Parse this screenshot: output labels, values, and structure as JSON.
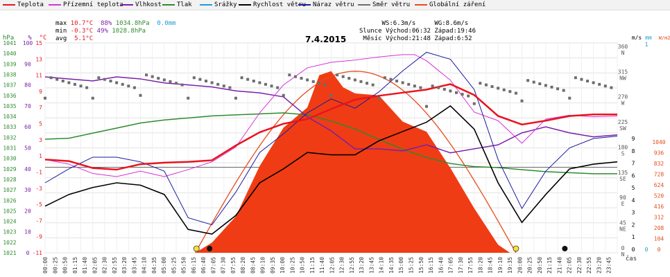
{
  "legend": [
    {
      "label": "Teplota",
      "color": "#e8141e"
    },
    {
      "label": "Přízemní teplota",
      "color": "#d930d9"
    },
    {
      "label": "Vlhkost",
      "color": "#7a1fa8"
    },
    {
      "label": "Tlak",
      "color": "#2d8a2d"
    },
    {
      "label": "Srážky",
      "color": "#1a9cd6"
    },
    {
      "label": "Rychlost větru",
      "color": "#000000"
    },
    {
      "label": "Náraz větru",
      "color": "#1a1a9c"
    },
    {
      "label": "Směr větru",
      "color": "#6d6d6d"
    },
    {
      "label": "Globální záření",
      "color": "#e84a1a"
    }
  ],
  "stats": {
    "max_label": "max",
    "max_temp": "10.7°C",
    "max_hum": "88%",
    "max_press": "1034.8hPa",
    "max_rain": "0.0mm",
    "min_label": "min",
    "min_temp": "-0.3°C",
    "min_hum": "49%",
    "min_press": "1028.8hPa",
    "avg_label": "avg",
    "avg_temp": "5.1°C"
  },
  "sun": {
    "ws": "WS:6.3m/s",
    "wg": "WG:8.6m/s",
    "sun_label": "Slunce",
    "sunrise": "Východ:06:32",
    "sunset": "Západ:19:46",
    "moon_label": "Měsíc",
    "moonrise": "Východ:21:48",
    "moonset": "Západ:6:52"
  },
  "title": "7.4.2015",
  "xlabel": "čas",
  "axes": {
    "hpa_unit": "hPa",
    "pct_unit": "%",
    "c_unit": "°C",
    "ms_unit": "m/s",
    "mm_unit": "mm",
    "wm2_unit": "W/m2",
    "hpa_ticks": [
      "1041",
      "1040",
      "1039",
      "1038",
      "1037",
      "1036",
      "1035",
      "1034",
      "1033",
      "1032",
      "1031",
      "1030",
      "1029",
      "1028",
      "1027",
      "1026",
      "1025",
      "1024",
      "1023",
      "1022",
      "1021"
    ],
    "pct_ticks": [
      "100",
      "90",
      "80",
      "70",
      "60",
      "50",
      "40",
      "30",
      "20",
      "10",
      "0"
    ],
    "c_ticks": [
      "15",
      "13",
      "11",
      "9",
      "7",
      "5",
      "3",
      "1",
      "-1",
      "-3",
      "-5",
      "-7",
      "-9",
      "-11"
    ],
    "dir_ticks": [
      {
        "v": "360",
        "d": "N"
      },
      {
        "v": "315",
        "d": "NW"
      },
      {
        "v": "270",
        "d": "W"
      },
      {
        "v": "225",
        "d": "SW"
      },
      {
        "v": "180",
        "d": "S"
      },
      {
        "v": "135",
        "d": "SE"
      },
      {
        "v": "90",
        "d": "E"
      },
      {
        "v": "45",
        "d": "NE"
      },
      {
        "v": "0",
        "d": "N"
      }
    ],
    "ms_ticks": [
      "9",
      "8",
      "7",
      "6",
      "5",
      "4",
      "3",
      "2",
      "1",
      "0"
    ],
    "mm_ticks": [
      "1",
      "0"
    ],
    "wm2_ticks": [
      "1040",
      "936",
      "832",
      "728",
      "624",
      "520",
      "416",
      "312",
      "208",
      "104",
      "0"
    ]
  },
  "chart_data": {
    "type": "line",
    "title": "7.4.2015",
    "x_ticks": [
      "00:00",
      "00:25",
      "00:50",
      "01:15",
      "01:40",
      "02:05",
      "02:30",
      "02:55",
      "03:20",
      "03:45",
      "04:10",
      "04:35",
      "05:00",
      "05:25",
      "05:50",
      "06:15",
      "06:40",
      "07:05",
      "07:30",
      "07:55",
      "08:20",
      "08:45",
      "09:10",
      "09:35",
      "10:00",
      "10:25",
      "10:50",
      "11:15",
      "11:40",
      "12:05",
      "12:30",
      "12:55",
      "13:20",
      "13:45",
      "14:10",
      "14:35",
      "15:00",
      "15:25",
      "15:50",
      "16:15",
      "16:40",
      "17:05",
      "17:30",
      "17:55",
      "18:20",
      "18:45",
      "19:10",
      "19:35",
      "20:00",
      "20:25",
      "20:50",
      "21:15",
      "21:40",
      "22:05",
      "22:30",
      "22:55",
      "23:20",
      "23:45"
    ],
    "series": [
      {
        "name": "Teplota",
        "unit": "°C",
        "x_hours": [
          0,
          1,
          2,
          3,
          4,
          5,
          6,
          7,
          8,
          9,
          10,
          11,
          12,
          13,
          14,
          15,
          16,
          17,
          18,
          19,
          20,
          21,
          22,
          23,
          24
        ],
        "values": [
          1,
          0.8,
          -0.1,
          -0.3,
          0.4,
          0.6,
          0.7,
          0.9,
          2.8,
          4.5,
          5.6,
          6.2,
          7.5,
          8.7,
          9.2,
          9.6,
          10.0,
          10.7,
          9.3,
          6.6,
          5.5,
          6.0,
          6.6,
          6.8,
          6.8
        ]
      },
      {
        "name": "Přízemní teplota",
        "unit": "°C",
        "x_hours": [
          0,
          1,
          2,
          3,
          4,
          5,
          6,
          7,
          8,
          9,
          10,
          11,
          12,
          13,
          14,
          15,
          15.5,
          16,
          17,
          18,
          19,
          20,
          21,
          22,
          23,
          24
        ],
        "values": [
          1,
          0.4,
          -0.8,
          -1.2,
          -0.5,
          -1.2,
          -0.3,
          0.7,
          2.6,
          7,
          10.6,
          12.8,
          13.5,
          13.8,
          14.2,
          14.5,
          14.5,
          13.7,
          11.2,
          7.1,
          6.0,
          3.1,
          6.2,
          6.7,
          6.5,
          6.6
        ]
      },
      {
        "name": "Vlhkost",
        "unit": "%",
        "x_hours": [
          0,
          1,
          2,
          3,
          4,
          5,
          6,
          7,
          8,
          9,
          10,
          11,
          12,
          13,
          14,
          15,
          16,
          17,
          18,
          19,
          20,
          21,
          22,
          23,
          24
        ],
        "values": [
          88,
          87,
          86,
          88,
          87,
          85,
          84,
          83,
          81,
          80,
          78,
          68,
          61,
          52,
          52,
          51,
          54,
          50,
          52,
          54,
          60,
          63,
          60,
          58,
          59
        ]
      },
      {
        "name": "Tlak",
        "unit": "hPa",
        "x_hours": [
          0,
          1,
          2,
          3,
          4,
          5,
          6,
          7,
          8,
          9,
          10,
          11,
          12,
          13,
          14,
          15,
          16,
          17,
          18,
          19,
          20,
          21,
          22,
          23,
          24
        ],
        "values": [
          1032.2,
          1032.3,
          1032.8,
          1033.3,
          1033.8,
          1034.1,
          1034.3,
          1034.5,
          1034.6,
          1034.7,
          1034.8,
          1034.6,
          1034.0,
          1033.2,
          1032.2,
          1031.2,
          1030.4,
          1029.8,
          1029.5,
          1029.4,
          1029.2,
          1029.0,
          1028.9,
          1028.8,
          1028.8
        ]
      },
      {
        "name": "Rychlost větru",
        "unit": "m/s",
        "x_hours": [
          0,
          1,
          2,
          3,
          4,
          5,
          6,
          7,
          8,
          9,
          10,
          11,
          12,
          13,
          14,
          15,
          16,
          17,
          18,
          19,
          20,
          21,
          22,
          23,
          24
        ],
        "values": [
          2.0,
          2.5,
          2.8,
          3.0,
          2.9,
          2.5,
          1.0,
          0.8,
          1.6,
          3.0,
          3.6,
          4.3,
          4.2,
          4.2,
          4.8,
          5.2,
          5.6,
          6.3,
          5.3,
          3.0,
          1.3,
          2.5,
          3.6,
          3.8,
          3.9
        ]
      },
      {
        "name": "Náraz větru",
        "unit": "m/s",
        "x_hours": [
          0,
          1,
          2,
          3,
          4,
          5,
          6,
          7,
          8,
          9,
          10,
          11,
          12,
          13,
          14,
          15,
          16,
          17,
          18,
          19,
          20,
          21,
          22,
          23,
          24
        ],
        "values": [
          3.0,
          3.6,
          4.1,
          4.1,
          3.9,
          3.5,
          1.5,
          1.2,
          2.6,
          4.3,
          5.1,
          6.0,
          6.6,
          6.2,
          6.9,
          7.8,
          8.6,
          8.3,
          7.0,
          4.0,
          1.9,
          3.5,
          4.5,
          4.9,
          5.0
        ]
      },
      {
        "name": "Směr větru",
        "unit": "°",
        "x_hours": [
          0,
          2,
          4,
          6,
          8,
          10,
          12,
          14,
          16,
          18,
          20,
          22,
          24
        ],
        "values": [
          300,
          300,
          305,
          300,
          300,
          305,
          305,
          300,
          285,
          290,
          295,
          300,
          295
        ]
      },
      {
        "name": "Globální záření",
        "unit": "W/m2",
        "x_hours": [
          6.3,
          7,
          8,
          9,
          10,
          11,
          11.5,
          12,
          12.5,
          13,
          14,
          15,
          16,
          17,
          18,
          19,
          19.5
        ],
        "values": [
          0,
          50,
          180,
          430,
          620,
          720,
          880,
          900,
          820,
          790,
          780,
          650,
          600,
          420,
          220,
          40,
          0
        ]
      },
      {
        "name": "Srážky",
        "unit": "mm",
        "x_hours": [
          0,
          24
        ],
        "values": [
          0,
          0
        ]
      }
    ],
    "y_ranges": {
      "temp": [
        -11,
        16
      ],
      "humidity": [
        0,
        105
      ],
      "pressure": [
        1021,
        1041.7
      ],
      "wind": [
        0,
        9
      ],
      "direction": [
        0,
        380
      ],
      "radiation": [
        0,
        1040
      ]
    }
  }
}
